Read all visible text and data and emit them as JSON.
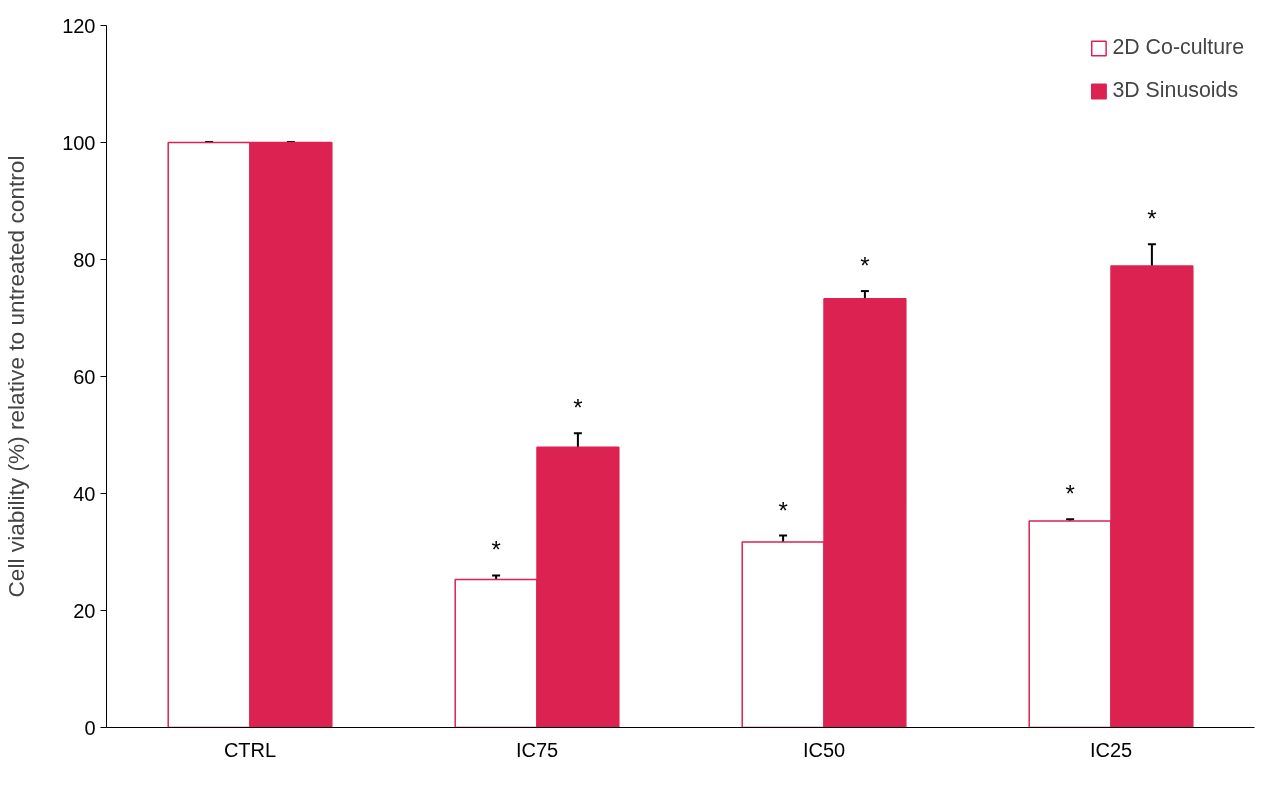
{
  "chart_data": {
    "type": "bar",
    "ylabel": "Cell viability (%) relative to untreated control",
    "categories": [
      "CTRL",
      "IC75",
      "IC50",
      "IC25"
    ],
    "series": [
      {
        "name": "2D Co-culture",
        "color": "#ffffff",
        "values": [
          100,
          25.3,
          31.7,
          35.3
        ],
        "errors": [
          0.1,
          0.7,
          1.1,
          0.3
        ]
      },
      {
        "name": "3D Sinusoids",
        "color": "#dc2250",
        "values": [
          100,
          47.9,
          73.3,
          78.9
        ],
        "errors": [
          0.1,
          2.4,
          1.3,
          3.7
        ]
      }
    ],
    "ylim": [
      0,
      120
    ],
    "yticks": [
      0,
      20,
      40,
      60,
      80,
      100,
      120
    ],
    "grid": false,
    "legend": "top right",
    "annotations": [
      {
        "text": "*",
        "x": "IC75",
        "y": 25.3
      },
      {
        "text": "*",
        "x": "IC75",
        "y": 47.9
      },
      {
        "text": "*",
        "x": "IC50",
        "y": 31.7
      },
      {
        "text": "*",
        "x": "IC50",
        "y": 73.3
      },
      {
        "text": "*",
        "x": "IC25",
        "y": 35.3
      },
      {
        "text": "*",
        "x": "IC25",
        "y": 78.9
      }
    ]
  }
}
